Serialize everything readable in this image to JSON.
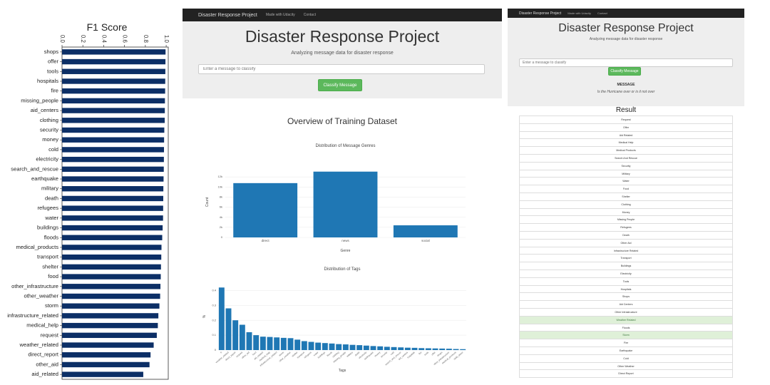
{
  "f1_chart": {
    "chart_data": {
      "type": "bar",
      "orientation": "horizontal",
      "title": "F1 Score",
      "categories": [
        "shops",
        "offer",
        "tools",
        "hospitals",
        "fire",
        "missing_people",
        "aid_centers",
        "clothing",
        "security",
        "money",
        "cold",
        "electricity",
        "search_and_rescue",
        "earthquake",
        "military",
        "death",
        "refugees",
        "water",
        "buildings",
        "floods",
        "medical_products",
        "transport",
        "shelter",
        "food",
        "other_infrastructure",
        "other_weather",
        "storm",
        "infrastructure_related",
        "medical_help",
        "request",
        "weather_related",
        "direct_report",
        "other_aid",
        "aid_related"
      ],
      "values": [
        0.994,
        0.993,
        0.992,
        0.991,
        0.99,
        0.988,
        0.987,
        0.986,
        0.982,
        0.98,
        0.979,
        0.978,
        0.977,
        0.975,
        0.973,
        0.972,
        0.971,
        0.97,
        0.966,
        0.962,
        0.955,
        0.953,
        0.95,
        0.948,
        0.945,
        0.942,
        0.935,
        0.925,
        0.92,
        0.91,
        0.88,
        0.85,
        0.84,
        0.78
      ],
      "xticks": [
        "0.0",
        "0.2",
        "0.4",
        "0.6",
        "0.8",
        "1.0"
      ],
      "xlim": [
        0,
        1.02
      ],
      "color": "#0c2f66"
    }
  },
  "main_app": {
    "navbar": {
      "brand": "Disaster Response Project",
      "links": [
        "Made with Udacity",
        "Contact"
      ]
    },
    "title": "Disaster Response Project",
    "lead": "Analyzing message data for disaster response",
    "input_placeholder": "Enter a message to classify",
    "button_label": "Classify Message",
    "overview_title": "Overview of Training Dataset",
    "genre_chart": {
      "chart_data": {
        "type": "bar",
        "title": "Distribution of Message Genres",
        "xlabel": "Genre",
        "ylabel": "Count",
        "categories": [
          "direct",
          "news",
          "social"
        ],
        "values": [
          10770,
          13050,
          2400
        ],
        "yticks": [
          "0",
          "2k",
          "4k",
          "6k",
          "8k",
          "10k",
          "12k"
        ],
        "ylim": [
          0,
          14000
        ],
        "color": "#1f77b4"
      }
    },
    "tags_chart": {
      "chart_data": {
        "type": "bar",
        "title": "Distribution of Tags",
        "xlabel": "Tags",
        "ylabel": "%",
        "values": [
          0.42,
          0.28,
          0.2,
          0.17,
          0.12,
          0.1,
          0.09,
          0.088,
          0.085,
          0.082,
          0.08,
          0.07,
          0.06,
          0.055,
          0.05,
          0.047,
          0.044,
          0.04,
          0.038,
          0.035,
          0.033,
          0.03,
          0.027,
          0.025,
          0.022,
          0.02,
          0.018,
          0.016,
          0.015,
          0.013,
          0.012,
          0.011,
          0.01,
          0.009,
          0.007,
          0.006
        ],
        "tick_labels": [
          "rl",
          "weather_related",
          "direct_report",
          "request",
          "other_aid",
          "food",
          "aid_related",
          "medical_help",
          "infrastructure_related",
          "storm",
          "other_weather",
          "shelter",
          "transport",
          "refugees",
          "water",
          "buildings",
          "floods",
          "clothing",
          "missing_people",
          "military",
          "death",
          "electricity",
          "earthquake",
          "money",
          "security",
          "cold",
          "search_and_rescue",
          "aid_centers",
          "hospitals",
          "fire",
          "tools",
          "offer",
          "shops",
          "other_infrastructure",
          "medical_products",
          "child_alone"
        ],
        "yticks": [
          "0",
          "0.1",
          "0.2",
          "0.3",
          "0.4"
        ],
        "ylim": [
          0,
          0.45
        ],
        "color": "#1f77b4"
      }
    }
  },
  "result_app": {
    "navbar": {
      "brand": "Disaster Response Project",
      "links": [
        "Made with Udacity",
        "Contact"
      ]
    },
    "title": "Disaster Response Project",
    "lead": "Analyzing message data for disaster response",
    "input_placeholder": "Enter a message to classify",
    "button_label": "Classify Message",
    "message_label": "MESSAGE",
    "message_text": "Is the Hurricane over or is it not over",
    "result_title": "Result",
    "categories": [
      {
        "label": "Request",
        "hit": false
      },
      {
        "label": "Offer",
        "hit": false
      },
      {
        "label": "Aid Related",
        "hit": false
      },
      {
        "label": "Medical Help",
        "hit": false
      },
      {
        "label": "Medical Products",
        "hit": false
      },
      {
        "label": "Search And Rescue",
        "hit": false
      },
      {
        "label": "Security",
        "hit": false
      },
      {
        "label": "Military",
        "hit": false
      },
      {
        "label": "Water",
        "hit": false
      },
      {
        "label": "Food",
        "hit": false
      },
      {
        "label": "Shelter",
        "hit": false
      },
      {
        "label": "Clothing",
        "hit": false
      },
      {
        "label": "Money",
        "hit": false
      },
      {
        "label": "Missing People",
        "hit": false
      },
      {
        "label": "Refugees",
        "hit": false
      },
      {
        "label": "Death",
        "hit": false
      },
      {
        "label": "Other Aid",
        "hit": false
      },
      {
        "label": "Infrastructure Related",
        "hit": false
      },
      {
        "label": "Transport",
        "hit": false
      },
      {
        "label": "Buildings",
        "hit": false
      },
      {
        "label": "Electricity",
        "hit": false
      },
      {
        "label": "Tools",
        "hit": false
      },
      {
        "label": "Hospitals",
        "hit": false
      },
      {
        "label": "Shops",
        "hit": false
      },
      {
        "label": "Aid Centers",
        "hit": false
      },
      {
        "label": "Other Infrastructure",
        "hit": false
      },
      {
        "label": "Weather Related",
        "hit": true
      },
      {
        "label": "Floods",
        "hit": false
      },
      {
        "label": "Storm",
        "hit": true
      },
      {
        "label": "Fire",
        "hit": false
      },
      {
        "label": "Earthquake",
        "hit": false
      },
      {
        "label": "Cold",
        "hit": false
      },
      {
        "label": "Other Weather",
        "hit": false
      },
      {
        "label": "Direct Report",
        "hit": false
      }
    ]
  }
}
